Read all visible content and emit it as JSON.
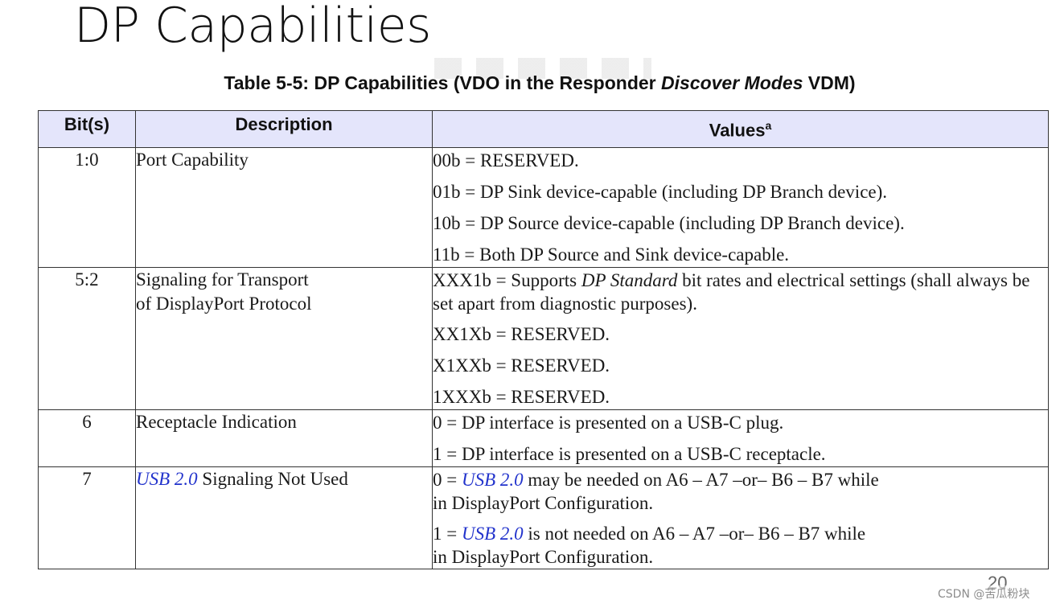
{
  "slide": {
    "title": "DP Capabilities",
    "page_number": "20"
  },
  "table": {
    "caption": {
      "prefix": "Table 5-5: DP Capabilities (VDO in the Responder ",
      "italic": "Discover Modes",
      "suffix": " VDM)"
    },
    "headers": {
      "bits": "Bit(s)",
      "description": "Description",
      "values": "Values",
      "values_sup": "a"
    },
    "rows": [
      {
        "bits": "1:0",
        "description": "Port Capability",
        "values": [
          "00b = RESERVED.",
          "01b = DP Sink device-capable (including DP Branch device).",
          "10b = DP Source device-capable (including DP Branch device).",
          "11b = Both DP Source and Sink device-capable."
        ]
      },
      {
        "bits": "5:2",
        "description": {
          "line1": "Signaling for Transport",
          "line2": "of DisplayPort Protocol"
        },
        "values": [
          {
            "prefix": "XXX1b = Supports ",
            "italic": "DP Standard",
            "suffix": " bit rates and electrical settings (shall always be set apart from diagnostic purposes)."
          },
          "XX1Xb = RESERVED.",
          "X1XXb = RESERVED.",
          "1XXXb = RESERVED."
        ]
      },
      {
        "bits": "6",
        "description": "Receptacle Indication",
        "values": [
          "0 = DP interface is presented on a USB-C plug.",
          "1 = DP interface is presented on a USB-C receptacle."
        ]
      },
      {
        "bits": "7",
        "description": {
          "link": "USB 2.0",
          "text": " Signaling Not Used"
        },
        "values": [
          {
            "prefix": "0 = ",
            "link": "USB 2.0",
            "line1_rest": " may be needed on A6 – A7 –or– B6 – B7 while",
            "line2": "in DisplayPort Configuration."
          },
          {
            "prefix": "1 = ",
            "link": "USB 2.0",
            "line1_rest": " is not needed on A6 – A7 –or– B6 – B7 while",
            "line2": "in DisplayPort Configuration."
          }
        ]
      }
    ]
  },
  "watermark": "CSDN @苦瓜粉块",
  "colors": {
    "header_bg": "#e4e5fb",
    "link": "#2233cc",
    "border": "#333333"
  }
}
